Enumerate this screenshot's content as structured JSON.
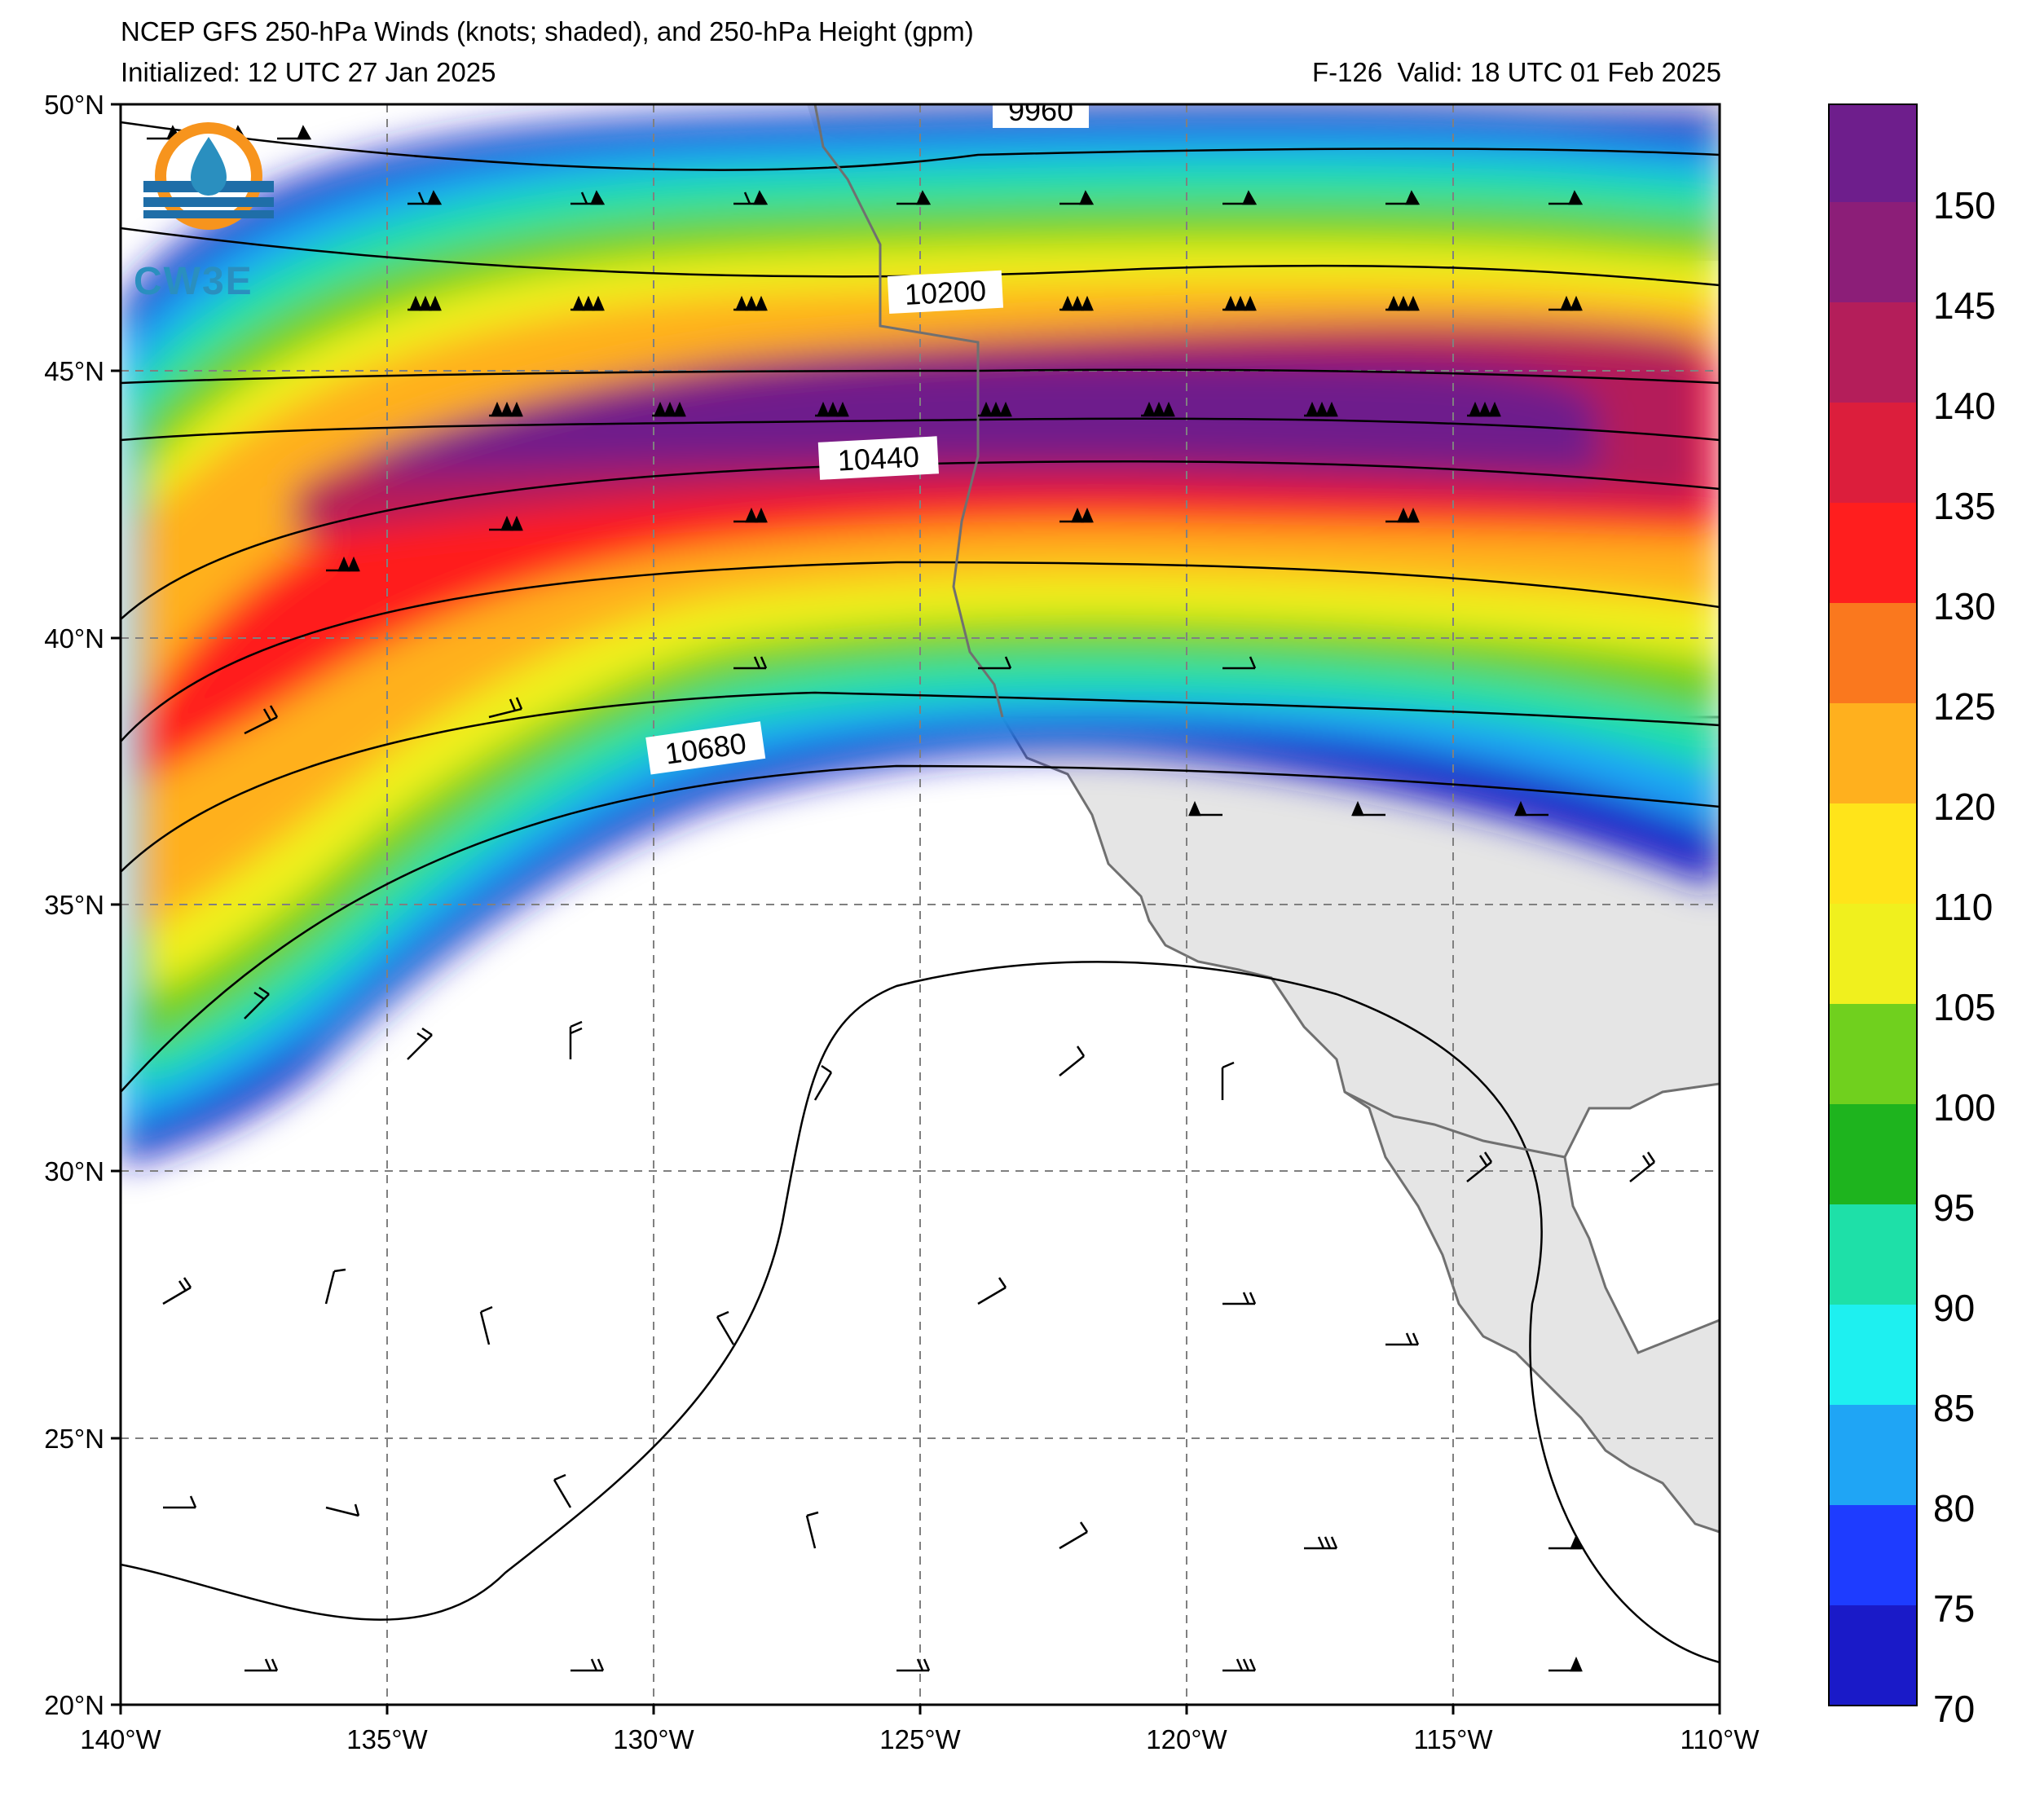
{
  "title": {
    "line1": "NCEP GFS 250-hPa Winds (knots; shaded), and 250-hPa Height (gpm)",
    "line2": "Initialized: 12 UTC 27 Jan 2025",
    "valid": "F-126  Valid: 18 UTC 01 Feb 2025"
  },
  "logo": {
    "text": "CW3E",
    "icon": "cw3e-logo-icon"
  },
  "map": {
    "lon_range": [
      -140,
      -110
    ],
    "lat_range": [
      20,
      50
    ],
    "lon_ticks": [
      "140°W",
      "135°W",
      "130°W",
      "125°W",
      "120°W",
      "115°W",
      "110°W"
    ],
    "lat_ticks": [
      "20°N",
      "25°N",
      "30°N",
      "35°N",
      "40°N",
      "45°N",
      "50°N"
    ],
    "gridlines": "dashed",
    "land_color": "#e5e5e5",
    "ocean_color": "#ffffff"
  },
  "height_contours": [
    {
      "label": "9960",
      "value": 9960
    },
    {
      "label": "10200",
      "value": 10200
    },
    {
      "label": "10440",
      "value": 10440
    },
    {
      "label": "10680",
      "value": 10680
    }
  ],
  "colorbar": {
    "ticks": [
      "150",
      "145",
      "140",
      "135",
      "130",
      "125",
      "120",
      "110",
      "105",
      "100",
      "95",
      "90",
      "85",
      "80",
      "75",
      "70"
    ],
    "levels": [
      70,
      75,
      80,
      85,
      90,
      95,
      100,
      105,
      110,
      120,
      125,
      130,
      135,
      140,
      145,
      150,
      160
    ],
    "colors": [
      "#1a1ac8",
      "#1e3cff",
      "#1fa5f5",
      "#1ef0f0",
      "#1ee0a8",
      "#1eb41e",
      "#70d01e",
      "#f0f01e",
      "#ffe41a",
      "#ffb01e",
      "#fa781e",
      "#ff1e1e",
      "#dc1e3c",
      "#b41e5a",
      "#8c1e78",
      "#6e1e8c"
    ]
  }
}
